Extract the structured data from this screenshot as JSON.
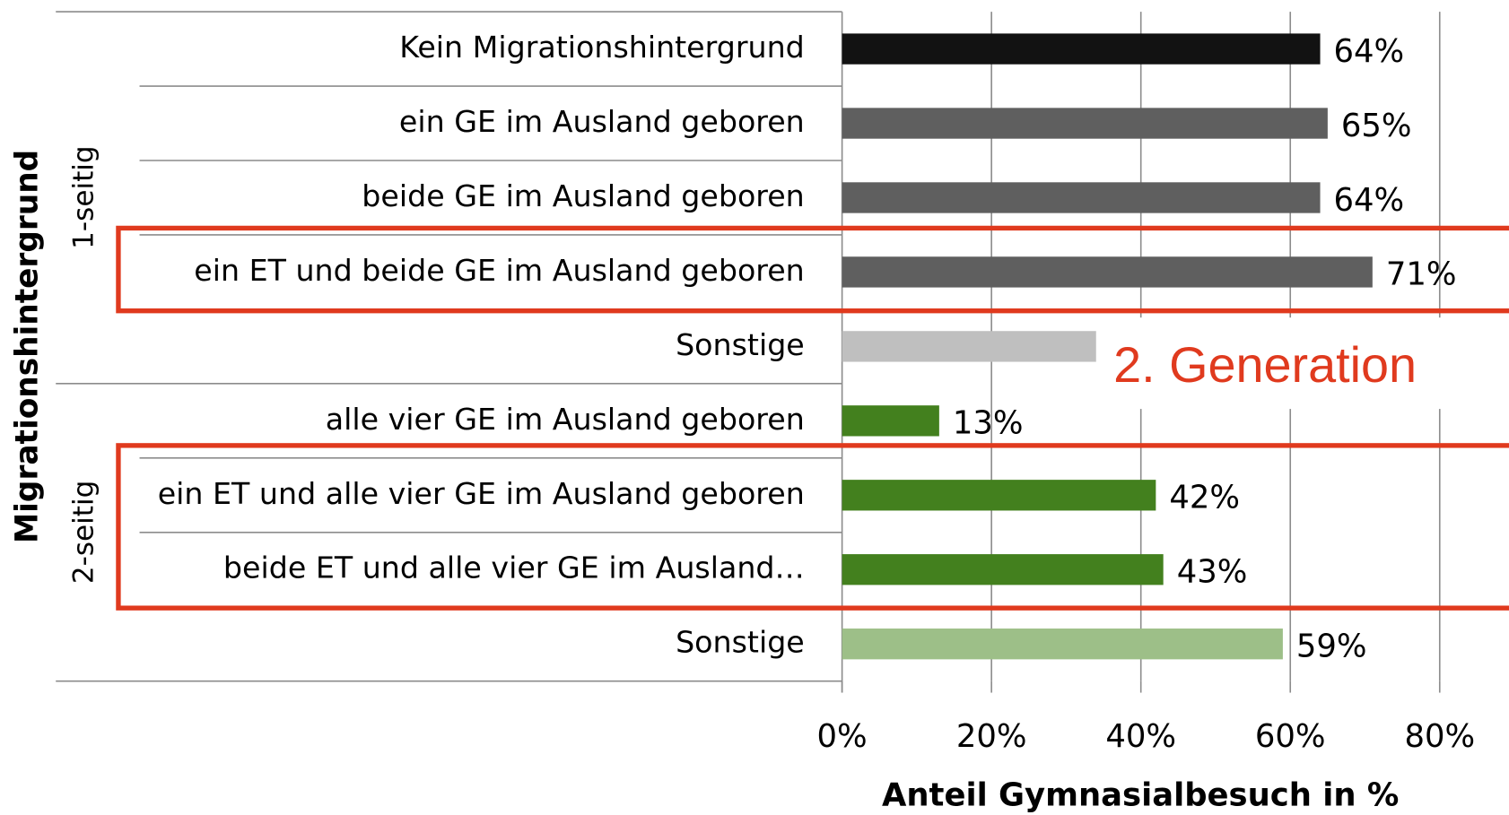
{
  "chart_data": {
    "type": "barh",
    "y_axis_title": "Migrationshintergrund",
    "x_axis_title": "Anteil Gymnasialbesuch in %",
    "groups": [
      "1-seitig",
      "2-seitig"
    ],
    "annotation": "2. Generation",
    "categories": [
      "Kein Migrationshintergrund",
      "ein GE im Ausland geboren",
      "beide GE im Ausland geboren",
      "ein ET und beide GE im Ausland geboren",
      "Sonstige",
      "alle vier GE im Ausland geboren",
      "ein ET und alle vier GE im Ausland geboren",
      "beide ET und alle vier GE im Ausland…",
      "Sonstige"
    ],
    "values": [
      64,
      65,
      64,
      71,
      34,
      13,
      42,
      43,
      59
    ],
    "value_labels": [
      "64%",
      "65%",
      "64%",
      "71%",
      null,
      "13%",
      "42%",
      "43%",
      "59%"
    ],
    "colors": [
      "#121212",
      "#5f5f5f",
      "#5f5f5f",
      "#5f5f5f",
      "#bfbfbf",
      "#43801e",
      "#43801e",
      "#43801e",
      "#9dbf88"
    ],
    "xlim": [
      0,
      80
    ],
    "xticks": [
      {
        "value": 0,
        "label": "0%"
      },
      {
        "value": 20,
        "label": "20%"
      },
      {
        "value": 40,
        "label": "40%"
      },
      {
        "value": 60,
        "label": "60%"
      },
      {
        "value": 80,
        "label": "80%"
      }
    ],
    "grid": true
  }
}
